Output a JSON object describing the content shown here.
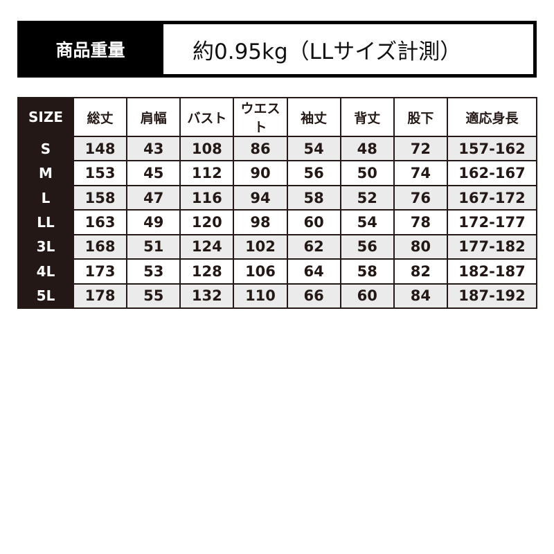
{
  "banner": {
    "label": "商品重量",
    "value": "約0.95kg（LLサイズ計測）"
  },
  "table": {
    "headers": [
      "SIZE",
      "総丈",
      "肩幅",
      "バスト",
      "ウエスト",
      "袖丈",
      "背丈",
      "股下",
      "適応身長"
    ],
    "rows": [
      [
        "S",
        "148",
        "43",
        "108",
        "86",
        "54",
        "48",
        "72",
        "157-162"
      ],
      [
        "M",
        "153",
        "45",
        "112",
        "90",
        "56",
        "50",
        "74",
        "162-167"
      ],
      [
        "L",
        "158",
        "47",
        "116",
        "94",
        "58",
        "52",
        "76",
        "167-172"
      ],
      [
        "LL",
        "163",
        "49",
        "120",
        "98",
        "60",
        "54",
        "78",
        "172-177"
      ],
      [
        "3L",
        "168",
        "51",
        "124",
        "102",
        "62",
        "56",
        "80",
        "177-182"
      ],
      [
        "4L",
        "173",
        "53",
        "128",
        "106",
        "64",
        "58",
        "82",
        "182-187"
      ],
      [
        "5L",
        "178",
        "55",
        "132",
        "110",
        "66",
        "60",
        "84",
        "187-192"
      ]
    ]
  }
}
